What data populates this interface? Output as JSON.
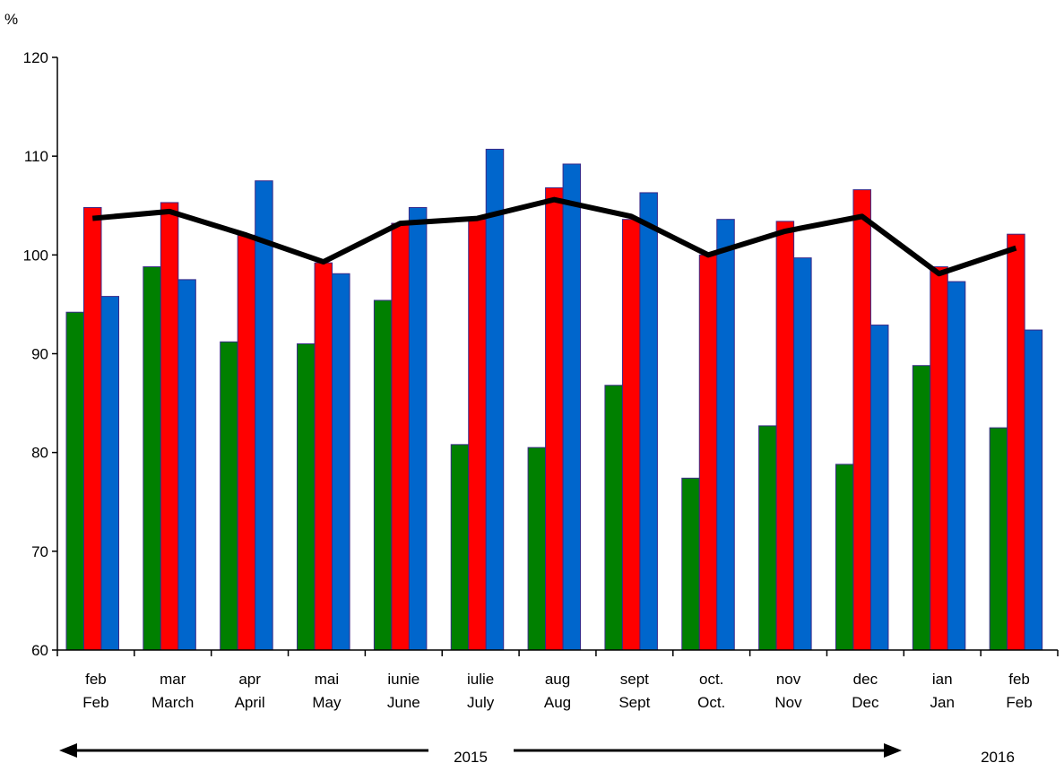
{
  "chart_data": {
    "type": "bar",
    "ylabel": "%",
    "ylim": [
      60,
      120
    ],
    "yticks": [
      "60",
      "70",
      "80",
      "90",
      "100",
      "110",
      "120"
    ],
    "categories": [
      {
        "ro": "feb",
        "en": "Feb"
      },
      {
        "ro": "mar",
        "en": "March"
      },
      {
        "ro": "apr",
        "en": "April"
      },
      {
        "ro": "mai",
        "en": "May"
      },
      {
        "ro": "iunie",
        "en": "June"
      },
      {
        "ro": "iulie",
        "en": "July"
      },
      {
        "ro": "aug",
        "en": "Aug"
      },
      {
        "ro": "sept",
        "en": "Sept"
      },
      {
        "ro": "oct.",
        "en": "Oct."
      },
      {
        "ro": "nov",
        "en": "Nov"
      },
      {
        "ro": "dec",
        "en": "Dec"
      },
      {
        "ro": "ian",
        "en": "Jan"
      },
      {
        "ro": "feb",
        "en": "Feb"
      }
    ],
    "series": [
      {
        "type": "bar",
        "color": "#008000",
        "values": [
          94.2,
          98.8,
          91.2,
          91.0,
          95.4,
          80.8,
          80.5,
          86.8,
          77.4,
          82.7,
          78.8,
          88.8,
          82.5
        ]
      },
      {
        "type": "bar",
        "color": "#ff0000",
        "values": [
          104.8,
          105.3,
          102.0,
          99.2,
          103.2,
          103.6,
          106.8,
          103.6,
          100.0,
          103.4,
          106.6,
          98.8,
          102.1
        ]
      },
      {
        "type": "bar",
        "color": "#0066cc",
        "values": [
          95.8,
          97.5,
          107.5,
          98.1,
          104.8,
          110.7,
          109.2,
          106.3,
          103.6,
          99.7,
          92.9,
          97.3,
          92.4
        ]
      },
      {
        "type": "line",
        "color": "#000000",
        "values": [
          103.7,
          104.4,
          102.0,
          99.3,
          103.2,
          103.7,
          105.6,
          103.9,
          100.0,
          102.4,
          103.9,
          98.1,
          100.7
        ]
      }
    ],
    "grid": false,
    "legend": "none",
    "period_labels": {
      "year1": "2015",
      "year2": "2016"
    }
  }
}
